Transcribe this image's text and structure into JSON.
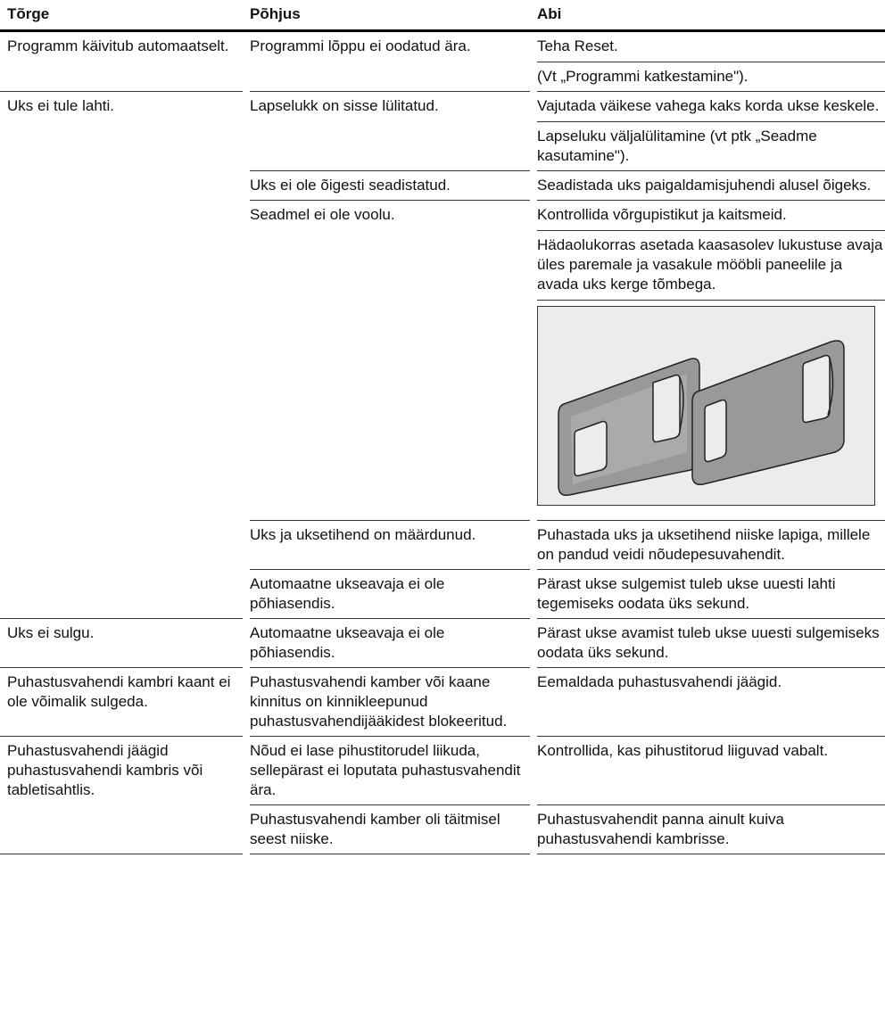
{
  "header": [
    "Tõrge",
    "Põhjus",
    "Abi"
  ],
  "groups": [
    {
      "fault": "Programm käivitub automaatselt.",
      "causes": [
        {
          "cause": "Programmi lõppu ei oodatud ära.",
          "help": [
            "Teha Reset.",
            "(Vt „Programmi katkestamine\")."
          ]
        }
      ]
    },
    {
      "fault": "Uks ei tule lahti.",
      "causes": [
        {
          "cause": "Lapselukk on sisse lülitatud.",
          "help": [
            "Vajutada väikese vahega kaks korda ukse keskele.",
            "Lapseluku väljalülitamine (vt ptk „Seadme kasutamine\")."
          ]
        },
        {
          "cause": "Uks ei ole õigesti seadistatud.",
          "help": [
            "Seadistada uks paigaldamisjuhendi alusel õigeks."
          ]
        },
        {
          "cause": "Seadmel ei ole voolu.",
          "help": [
            "Kontrollida võrgupistikut ja kaitsmeid.",
            "Hädaolukorras asetada kaasasolev lukustuse avaja üles paremale ja vasakule mööbli paneelile ja avada uks kerge tõmbega."
          ]
        },
        {
          "cause": "Uks ja uksetihend on määrdunud.",
          "help": [
            "Puhastada uks ja uksetihend niiske lapiga, millele on pandud veidi nõudepesuvahendit."
          ]
        },
        {
          "cause": "Automaatne ukseavaja ei ole põhiasendis.",
          "help": [
            "Pärast ukse sulgemist tuleb ukse uuesti lahti tegemiseks oodata üks sekund."
          ]
        }
      ]
    },
    {
      "fault": "Uks ei sulgu.",
      "causes": [
        {
          "cause": "Automaatne ukseavaja ei ole põhiasendis.",
          "help": [
            "Pärast ukse avamist tuleb ukse uuesti sulgemiseks oodata üks sekund."
          ]
        }
      ]
    },
    {
      "fault": "Puhastusvahendi kambri kaant ei ole võimalik sulgeda.",
      "causes": [
        {
          "cause": "Puhastusvahendi kamber või kaane kinnitus on kinnikleepunud puhastusvahendijääkidest blokeeritud.",
          "help": [
            "Eemaldada puhastusvahendi jäägid."
          ]
        }
      ]
    },
    {
      "fault": "Puhastusvahendi jäägid puhastusvahendi kambris või tabletisahtlis.",
      "causes": [
        {
          "cause": "Nõud ei lase pihustitorudel liikuda, sellepärast ei loputata puhastusvahendit ära.",
          "help": [
            "Kontrollida, kas pihustitorud liiguvad vabalt."
          ]
        },
        {
          "cause": "Puhastusvahendi kamber oli täitmisel seest niiske.",
          "help": [
            "Puhastusvahendit panna ainult kuiva puhastusvahendi kambrisse."
          ]
        }
      ]
    }
  ]
}
